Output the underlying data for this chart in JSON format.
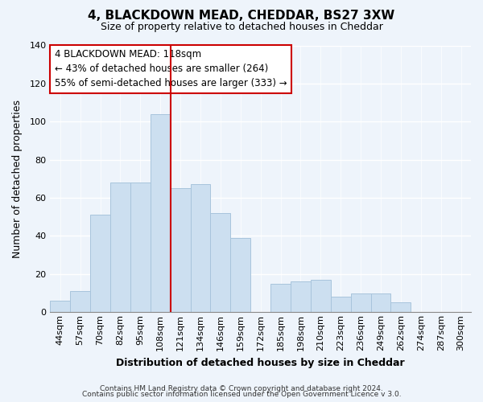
{
  "title": "4, BLACKDOWN MEAD, CHEDDAR, BS27 3XW",
  "subtitle": "Size of property relative to detached houses in Cheddar",
  "xlabel": "Distribution of detached houses by size in Cheddar",
  "ylabel": "Number of detached properties",
  "bar_labels": [
    "44sqm",
    "57sqm",
    "70sqm",
    "82sqm",
    "95sqm",
    "108sqm",
    "121sqm",
    "134sqm",
    "146sqm",
    "159sqm",
    "172sqm",
    "185sqm",
    "198sqm",
    "210sqm",
    "223sqm",
    "236sqm",
    "249sqm",
    "262sqm",
    "274sqm",
    "287sqm",
    "300sqm"
  ],
  "bar_heights": [
    6,
    11,
    51,
    68,
    68,
    104,
    65,
    67,
    52,
    39,
    0,
    15,
    16,
    17,
    8,
    10,
    10,
    5,
    0,
    0,
    0
  ],
  "bar_color": "#ccdff0",
  "bar_edge_color": "#a8c4dc",
  "vline_x_index": 6,
  "vline_color": "#cc0000",
  "ylim": [
    0,
    140
  ],
  "yticks": [
    0,
    20,
    40,
    60,
    80,
    100,
    120,
    140
  ],
  "annotation_title": "4 BLACKDOWN MEAD: 118sqm",
  "annotation_line1": "← 43% of detached houses are smaller (264)",
  "annotation_line2": "55% of semi-detached houses are larger (333) →",
  "annotation_box_color": "#ffffff",
  "annotation_box_edge": "#cc0000",
  "footer_line1": "Contains HM Land Registry data © Crown copyright and database right 2024.",
  "footer_line2": "Contains public sector information licensed under the Open Government Licence v 3.0.",
  "background_color": "#eef4fb",
  "title_fontsize": 11,
  "subtitle_fontsize": 9,
  "xlabel_fontsize": 9,
  "ylabel_fontsize": 9,
  "tick_fontsize": 8,
  "footer_fontsize": 6.5
}
